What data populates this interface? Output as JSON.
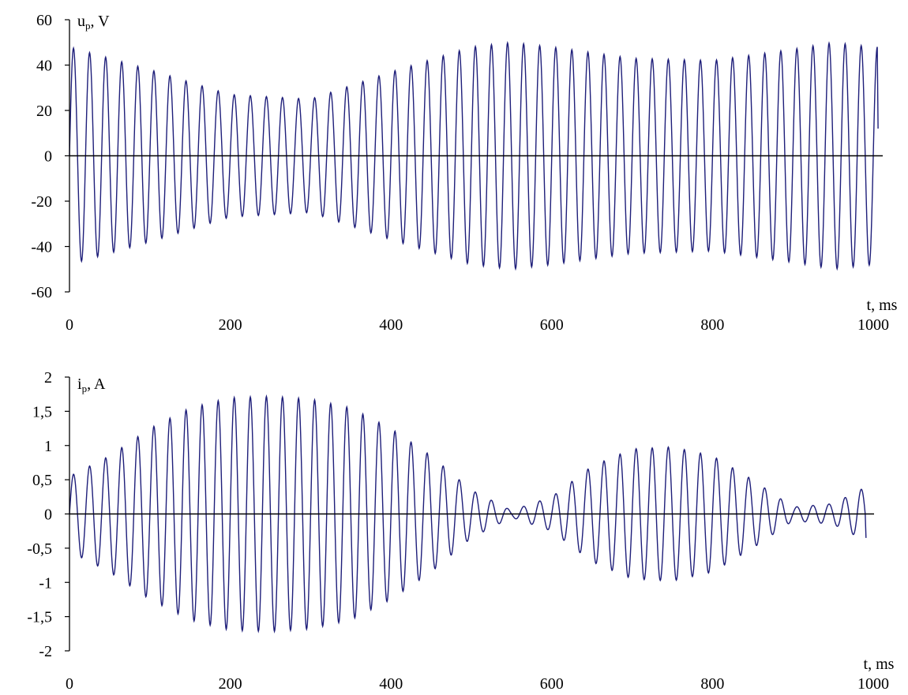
{
  "chart_data": [
    {
      "type": "line",
      "ylabel": {
        "main": "u",
        "sub": "p",
        "rest": ", V"
      },
      "xlabel": "t, ms",
      "xlim": [
        0,
        1000
      ],
      "ylim": [
        -60,
        60
      ],
      "xticks": [
        0,
        200,
        400,
        600,
        800,
        1000
      ],
      "xtick_labels": [
        "0",
        "200",
        "400",
        "600",
        "800",
        "1000"
      ],
      "yticks": [
        -60,
        -40,
        -20,
        0,
        20,
        40,
        60
      ],
      "ytick_labels": [
        "-60",
        "-40",
        "-20",
        "0",
        "20",
        "40",
        "60"
      ],
      "grid": false,
      "line_color": "#1f1f7a",
      "signal": {
        "period_ms": 20,
        "t_end_ms": 1005,
        "final_value": 12,
        "envelope": {
          "t": [
            0,
            100,
            200,
            300,
            400,
            500,
            550,
            600,
            700,
            800,
            900,
            950,
            1000
          ],
          "amplitude": [
            48,
            38,
            27,
            25,
            37,
            48,
            50,
            48,
            43,
            42,
            47,
            50,
            48
          ]
        }
      },
      "series": [
        {
          "x": [
            0,
            100,
            200,
            300,
            400,
            500,
            550,
            600,
            700,
            800,
            900,
            950,
            1000
          ],
          "y_amplitude": [
            48,
            38,
            27,
            25,
            37,
            48,
            50,
            48,
            43,
            42,
            47,
            50,
            48
          ]
        }
      ]
    },
    {
      "type": "line",
      "ylabel": {
        "main": "i",
        "sub": "p",
        "rest": ", A"
      },
      "xlabel": "t, ms",
      "xlim": [
        0,
        1000
      ],
      "ylim": [
        -2,
        2
      ],
      "xticks": [
        0,
        200,
        400,
        600,
        800,
        1000
      ],
      "xtick_labels": [
        "0",
        "200",
        "400",
        "600",
        "800",
        "1000"
      ],
      "yticks": [
        -2,
        -1.5,
        -1,
        -0.5,
        0,
        0.5,
        1,
        1.5,
        2
      ],
      "ytick_labels": [
        "-2",
        "-1,5",
        "-1",
        "-0,5",
        "0",
        "0,5",
        "1",
        "1,5",
        "2"
      ],
      "grid": false,
      "line_color": "#1f1f7a",
      "signal": {
        "period_ms": 20,
        "t_end_ms": 990,
        "final_value": -0.35,
        "envelope": {
          "t": [
            0,
            50,
            100,
            150,
            200,
            250,
            300,
            350,
            400,
            450,
            500,
            550,
            600,
            650,
            700,
            750,
            800,
            850,
            900,
            950,
            1000
          ],
          "amplitude": [
            0.55,
            0.85,
            1.25,
            1.55,
            1.7,
            1.72,
            1.68,
            1.55,
            1.25,
            0.85,
            0.35,
            0.05,
            0.25,
            0.7,
            0.95,
            0.98,
            0.85,
            0.5,
            0.1,
            0.15,
            0.45
          ]
        }
      },
      "series": [
        {
          "x": [
            0,
            50,
            100,
            150,
            200,
            250,
            300,
            350,
            400,
            450,
            500,
            550,
            600,
            650,
            700,
            750,
            800,
            850,
            900,
            950,
            1000
          ],
          "y_amplitude": [
            0.55,
            0.85,
            1.25,
            1.55,
            1.7,
            1.72,
            1.68,
            1.55,
            1.25,
            0.85,
            0.35,
            0.05,
            0.25,
            0.7,
            0.95,
            0.98,
            0.85,
            0.5,
            0.1,
            0.15,
            0.45
          ]
        }
      ]
    }
  ]
}
